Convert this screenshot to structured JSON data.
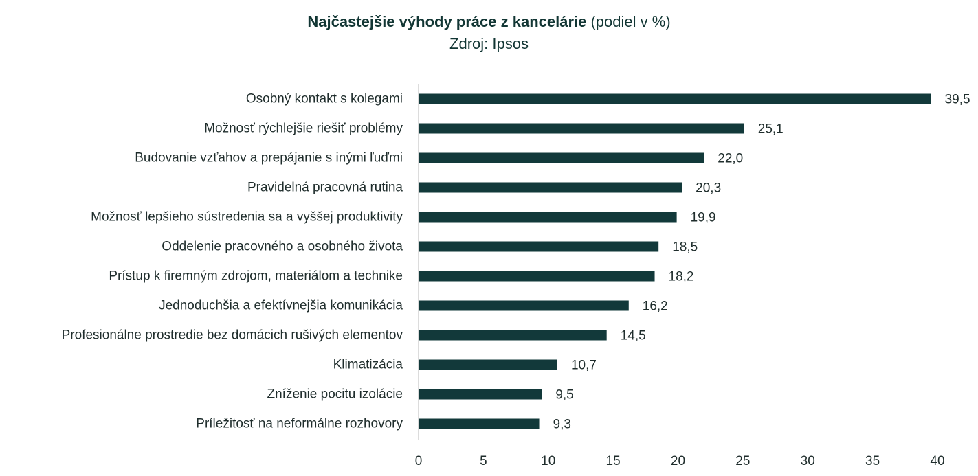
{
  "chart_data": {
    "type": "bar",
    "orientation": "horizontal",
    "title": "Najčastejšie výhody práce z kancelárie",
    "title_suffix": "(podiel v %)",
    "subtitle": "Zdroj: Ipsos",
    "categories": [
      "Osobný kontakt s kolegami",
      "Možnosť rýchlejšie riešiť problémy",
      "Budovanie vzťahov a prepájanie s inými ľuďmi",
      "Pravidelná pracovná rutina",
      "Možnosť lepšieho sústredenia sa a vyššej produktivity",
      "Oddelenie pracovného a osobného života",
      "Prístup k firemným zdrojom, materiálom a technike",
      "Jednoduchšia a efektívnejšia komunikácia",
      "Profesionálne prostredie bez domácich rušivých elementov",
      "Klimatizácia",
      "Zníženie pocitu izolácie",
      "Príležitosť na neformálne rozhovory"
    ],
    "values": [
      39.5,
      25.1,
      22.0,
      20.3,
      19.9,
      18.5,
      18.2,
      16.2,
      14.5,
      10.7,
      9.5,
      9.3
    ],
    "value_labels": [
      "39,5",
      "25,1",
      "22,0",
      "20,3",
      "19,9",
      "18,5",
      "18,2",
      "16,2",
      "14,5",
      "10,7",
      "9,5",
      "9,3"
    ],
    "xlim": [
      0,
      40
    ],
    "xticks": [
      0,
      5,
      10,
      15,
      20,
      25,
      30,
      35,
      40
    ],
    "xtick_labels": [
      "0",
      "5",
      "10",
      "15",
      "20",
      "25",
      "30",
      "35",
      "40"
    ],
    "grid": false,
    "legend": "none",
    "bar_color": "#12393a"
  }
}
